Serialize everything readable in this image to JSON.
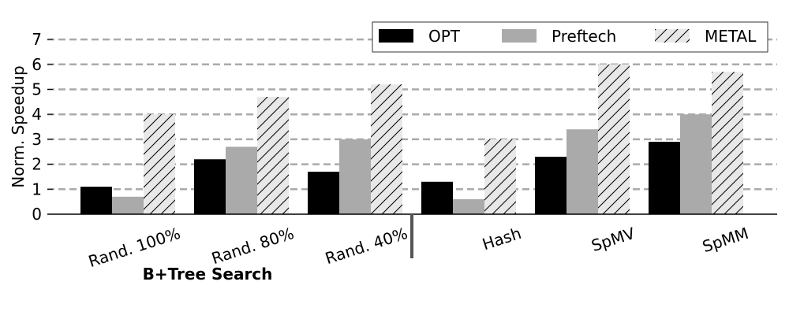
{
  "chart_data": {
    "type": "bar",
    "categories": [
      "Rand. 100%",
      "Rand. 80%",
      "Rand. 40%",
      "Hash",
      "SpMV",
      "SpMM"
    ],
    "series": [
      {
        "name": "OPT",
        "values": [
          1.1,
          2.2,
          1.7,
          1.3,
          2.3,
          2.9
        ],
        "color": "#000000",
        "pattern": "solid"
      },
      {
        "name": "Preftech",
        "values": [
          0.7,
          2.7,
          3.0,
          0.6,
          3.4,
          4.0
        ],
        "color": "#aaaaaa",
        "pattern": "solid"
      },
      {
        "name": "METAL",
        "values": [
          4.0,
          4.7,
          5.2,
          3.0,
          6.0,
          5.7
        ],
        "color": "#e8e8e8",
        "pattern": "diagonal-hatch"
      }
    ],
    "ylabel": "Norm. Speedup",
    "xlabel": "",
    "ylim": [
      0,
      7
    ],
    "yticks": [
      "0",
      "1",
      "2",
      "3",
      "4",
      "5",
      "6",
      "7"
    ],
    "grid": "horizontal-dashed",
    "legend_position": "top-right",
    "group_label": "B+Tree Search",
    "group_label_covers": [
      "Rand. 100%",
      "Rand. 80%",
      "Rand. 40%"
    ],
    "separator_after_category": "Rand. 40%"
  }
}
